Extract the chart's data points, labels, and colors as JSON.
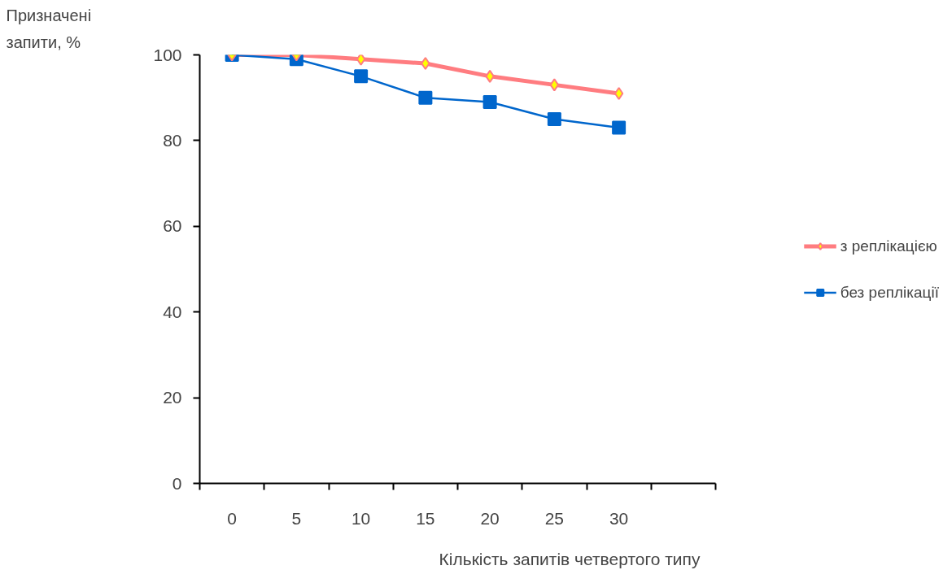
{
  "chart_data": {
    "type": "line",
    "xlabel": "Кількість запитів четвертого типу",
    "ylabel": "Призначені запити, %",
    "categories": [
      "0",
      "5",
      "10",
      "15",
      "20",
      "25",
      "30",
      null
    ],
    "series": [
      {
        "name": "з реплікацією",
        "color": "#ff7c80",
        "marker": "diamond",
        "values": [
          100,
          100,
          99,
          98,
          95,
          93,
          91,
          null
        ]
      },
      {
        "name": "без реплікації",
        "color": "#0066cc",
        "marker": "square",
        "values": [
          100,
          99,
          95,
          90,
          89,
          85,
          83,
          null
        ]
      }
    ],
    "ylim": [
      0,
      100
    ],
    "yticks": [
      0,
      20,
      40,
      60,
      80,
      100
    ],
    "grid": false,
    "legend": "right",
    "line_style": "solid"
  }
}
